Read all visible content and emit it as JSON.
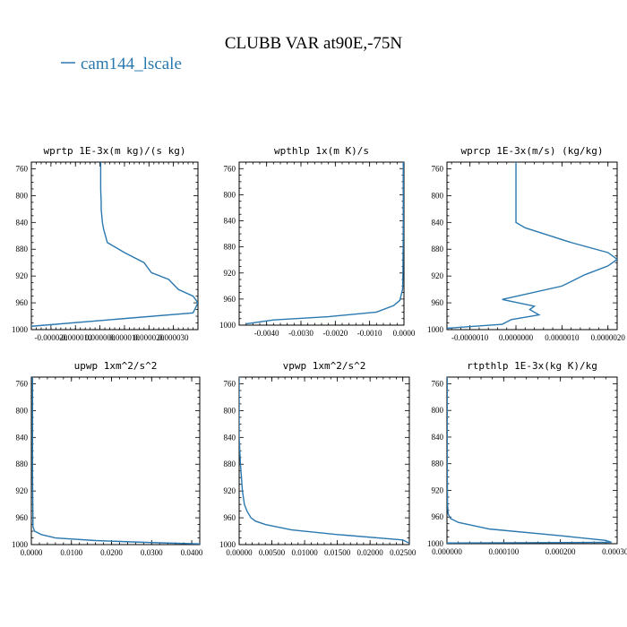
{
  "figure": {
    "title": "CLUBB VAR at90E,-75N",
    "legend": {
      "label": "cam144_lscale",
      "color": "#2a78b0"
    }
  },
  "chart_data": [
    {
      "type": "line",
      "title": "wprtp  1E-3x(m kg)/(s kg)",
      "ylim": [
        1000,
        750
      ],
      "yticks": [
        760,
        800,
        840,
        880,
        920,
        960,
        1000
      ],
      "xlim": [
        -2.8e-05,
        4e-05
      ],
      "xticks": [
        -2e-05,
        -1e-05,
        0.0,
        1e-05,
        2e-05,
        3e-05
      ],
      "xtick_labels": [
        "-0.000020",
        "-0.000010",
        "0.000000",
        "0.000010",
        "0.000020",
        "0.000030"
      ],
      "series": [
        {
          "x": [
            3e-07,
            3e-07,
            5e-07,
            5e-07,
            1e-06,
            1.5e-06,
            3e-06,
            1e-05,
            1.8e-05,
            2.1e-05,
            2.8e-05,
            3.2e-05,
            3.8e-05,
            4e-05,
            3.8e-05,
            -2.8e-05
          ],
          "y": [
            750,
            790,
            810,
            820,
            840,
            850,
            870,
            885,
            900,
            915,
            925,
            940,
            950,
            960,
            975,
            995
          ]
        }
      ]
    },
    {
      "type": "line",
      "title": "wpthlp  1x(m K)/s",
      "ylim": [
        1000,
        750
      ],
      "yticks": [
        760,
        800,
        840,
        880,
        920,
        960,
        1000
      ],
      "xlim": [
        -0.0048,
        0.0
      ],
      "xticks": [
        -0.004,
        -0.003,
        -0.002,
        -0.001,
        0.0
      ],
      "xtick_labels": [
        "-0.0040",
        "-0.0030",
        "-0.0020",
        "-0.0010",
        "0.0000"
      ],
      "series": [
        {
          "x": [
            -2e-05,
            -2e-05,
            -3e-05,
            -4e-05,
            -0.00012,
            -0.0003,
            -0.0008,
            -0.0022,
            -0.0038,
            -0.0046
          ],
          "y": [
            750,
            860,
            920,
            945,
            962,
            970,
            980,
            987,
            992,
            998
          ]
        }
      ]
    },
    {
      "type": "line",
      "title": "wprcp  1E-3x(m/s) (kg/kg)",
      "ylim": [
        1000,
        750
      ],
      "yticks": [
        760,
        800,
        840,
        880,
        920,
        960,
        1000
      ],
      "xlim": [
        -1.5e-06,
        2.2e-06
      ],
      "xticks": [
        -1e-06,
        0.0,
        1e-06,
        2e-06
      ],
      "xtick_labels": [
        "-0.0000010",
        "0.0000000",
        "0.0000010",
        "0.0000020"
      ],
      "series": [
        {
          "x": [
            0.0,
            0.0,
            0.0,
            2e-07,
            1.2e-06,
            2e-06,
            2.2e-06,
            2e-06,
            1.5e-06,
            1e-06,
            -3e-07,
            4e-07,
            3e-07,
            5e-07,
            -1e-07,
            -3e-07,
            -1.5e-06
          ],
          "y": [
            750,
            820,
            840,
            848,
            870,
            885,
            895,
            905,
            918,
            935,
            955,
            965,
            970,
            978,
            985,
            992,
            998
          ]
        }
      ]
    },
    {
      "type": "line",
      "title": "upwp  1xm^2/s^2",
      "ylim": [
        1000,
        750
      ],
      "yticks": [
        760,
        800,
        840,
        880,
        920,
        960,
        1000
      ],
      "xlim": [
        0.0,
        0.042
      ],
      "xticks": [
        0.0,
        0.01,
        0.02,
        0.03,
        0.04
      ],
      "xtick_labels": [
        "0.0000",
        "0.0100",
        "0.0200",
        "0.0300",
        "0.0400"
      ],
      "series": [
        {
          "x": [
            0.0003,
            0.0003,
            0.0004,
            0.0004,
            0.0008,
            0.0025,
            0.006,
            0.016,
            0.03,
            0.042
          ],
          "y": [
            750,
            900,
            960,
            973,
            980,
            985,
            990,
            994,
            997,
            999
          ]
        }
      ]
    },
    {
      "type": "line",
      "title": "vpwp  1xm^2/s^2",
      "ylim": [
        1000,
        750
      ],
      "yticks": [
        760,
        800,
        840,
        880,
        920,
        960,
        1000
      ],
      "xlim": [
        0.0,
        0.026
      ],
      "xticks": [
        0.0,
        0.005,
        0.01,
        0.015,
        0.02,
        0.025
      ],
      "xtick_labels": [
        "0.00000",
        "0.00500",
        "0.01000",
        "0.01500",
        "0.02000",
        "0.02500"
      ],
      "series": [
        {
          "x": [
            0.0,
            0.0,
            0.0002,
            0.0005,
            0.0008,
            0.0012,
            0.0018,
            0.0025,
            0.004,
            0.008,
            0.015,
            0.025,
            0.026
          ],
          "y": [
            750,
            840,
            880,
            920,
            940,
            950,
            960,
            965,
            970,
            978,
            985,
            993,
            998
          ]
        }
      ]
    },
    {
      "type": "line",
      "title": "rtpthlp  1E-3x(kg K)/kg",
      "ylim": [
        1000,
        750
      ],
      "yticks": [
        760,
        800,
        840,
        880,
        920,
        960,
        1000
      ],
      "xlim": [
        0.0,
        0.0003
      ],
      "xticks": [
        0.0,
        0.0001,
        0.0002,
        0.0003
      ],
      "xtick_labels": [
        "0.000000",
        "0.000100",
        "0.000200",
        "0.000300"
      ],
      "series": [
        {
          "x": [
            5e-07,
            5e-07,
            1e-06,
            2e-06,
            6e-06,
            2e-05,
            7.5e-05,
            0.0002,
            0.00028,
            0.00029,
            0.0
          ],
          "y": [
            750,
            880,
            940,
            955,
            962,
            968,
            978,
            988,
            995,
            998,
            999
          ]
        }
      ]
    }
  ]
}
